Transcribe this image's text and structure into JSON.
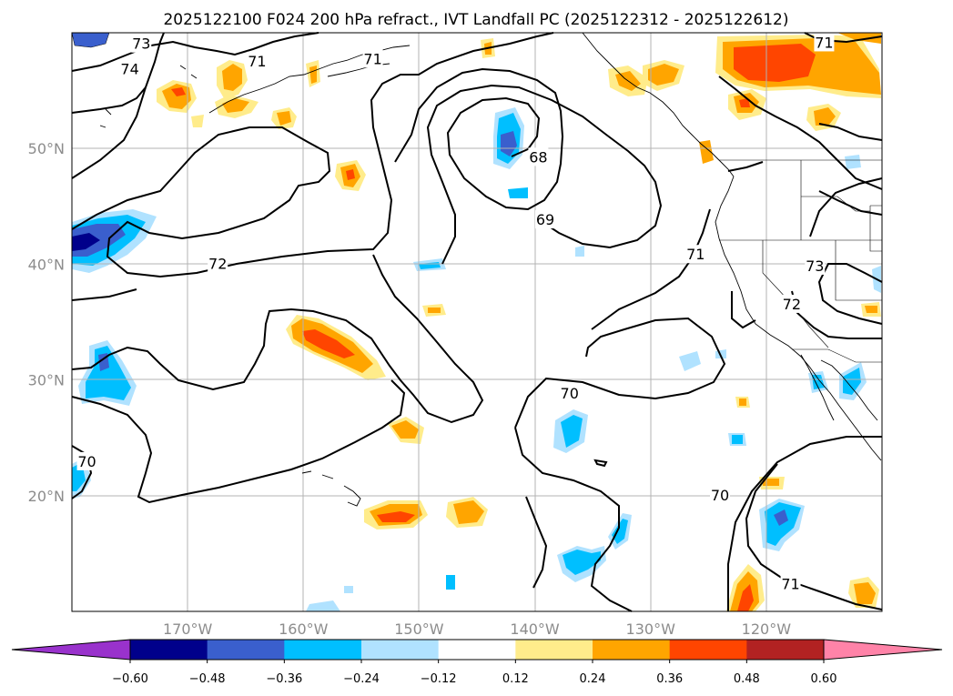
{
  "chart_data": {
    "type": "map-contour",
    "title": "2025122100 F024 200 hPa refract., IVT Landfall PC (2025122312 - 2025122612)",
    "lat_range": [
      10,
      60
    ],
    "lon_range": [
      -180,
      -110
    ],
    "lat_ticks": [
      {
        "value": 50,
        "label": "50°N"
      },
      {
        "value": 40,
        "label": "40°N"
      },
      {
        "value": 30,
        "label": "30°N"
      },
      {
        "value": 20,
        "label": "20°N"
      }
    ],
    "lon_ticks": [
      {
        "value": -170,
        "label": "170°W"
      },
      {
        "value": -160,
        "label": "160°W"
      },
      {
        "value": -150,
        "label": "150°W"
      },
      {
        "value": -140,
        "label": "140°W"
      },
      {
        "value": -130,
        "label": "130°W"
      },
      {
        "value": -120,
        "label": "120°W"
      }
    ],
    "contour_labels": [
      {
        "text": "73",
        "lon": -174,
        "lat": 59
      },
      {
        "text": "74",
        "lon": -175,
        "lat": 56.8
      },
      {
        "text": "71",
        "lon": -164,
        "lat": 57.5
      },
      {
        "text": "71",
        "lon": -154,
        "lat": 57.7
      },
      {
        "text": "68",
        "lon": -139.7,
        "lat": 49.2
      },
      {
        "text": "69",
        "lon": -139.1,
        "lat": 43.8
      },
      {
        "text": "72",
        "lon": -167.4,
        "lat": 40
      },
      {
        "text": "71",
        "lon": -126.1,
        "lat": 40.8
      },
      {
        "text": "73",
        "lon": -115.8,
        "lat": 39.8
      },
      {
        "text": "72",
        "lon": -117.8,
        "lat": 36.5
      },
      {
        "text": "70",
        "lon": -137,
        "lat": 28.8
      },
      {
        "text": "70",
        "lon": -178.7,
        "lat": 22.9
      },
      {
        "text": "70",
        "lon": -124,
        "lat": 20
      },
      {
        "text": "71",
        "lon": -117.9,
        "lat": 12.3
      },
      {
        "text": "71",
        "lon": -115,
        "lat": 59.1
      }
    ],
    "colorbar": {
      "boundaries": [
        -0.72,
        -0.6,
        -0.48,
        -0.36,
        -0.24,
        -0.12,
        0.12,
        0.24,
        0.36,
        0.48,
        0.6,
        0.72
      ],
      "tick_values": [
        -0.6,
        -0.48,
        -0.36,
        -0.24,
        -0.12,
        0.12,
        0.24,
        0.36,
        0.48,
        0.6
      ],
      "tick_labels": [
        "−0.60",
        "−0.48",
        "−0.36",
        "−0.24",
        "−0.12",
        "0.12",
        "0.24",
        "0.36",
        "0.48",
        "0.60"
      ],
      "colors": [
        "#9932cc",
        "#00008b",
        "#3a5fcd",
        "#00bfff",
        "#b0e2ff",
        "#ffffff",
        "#ffec8b",
        "#ffa500",
        "#ff4500",
        "#b22222",
        "#ff83a8"
      ],
      "extend": "both"
    }
  }
}
